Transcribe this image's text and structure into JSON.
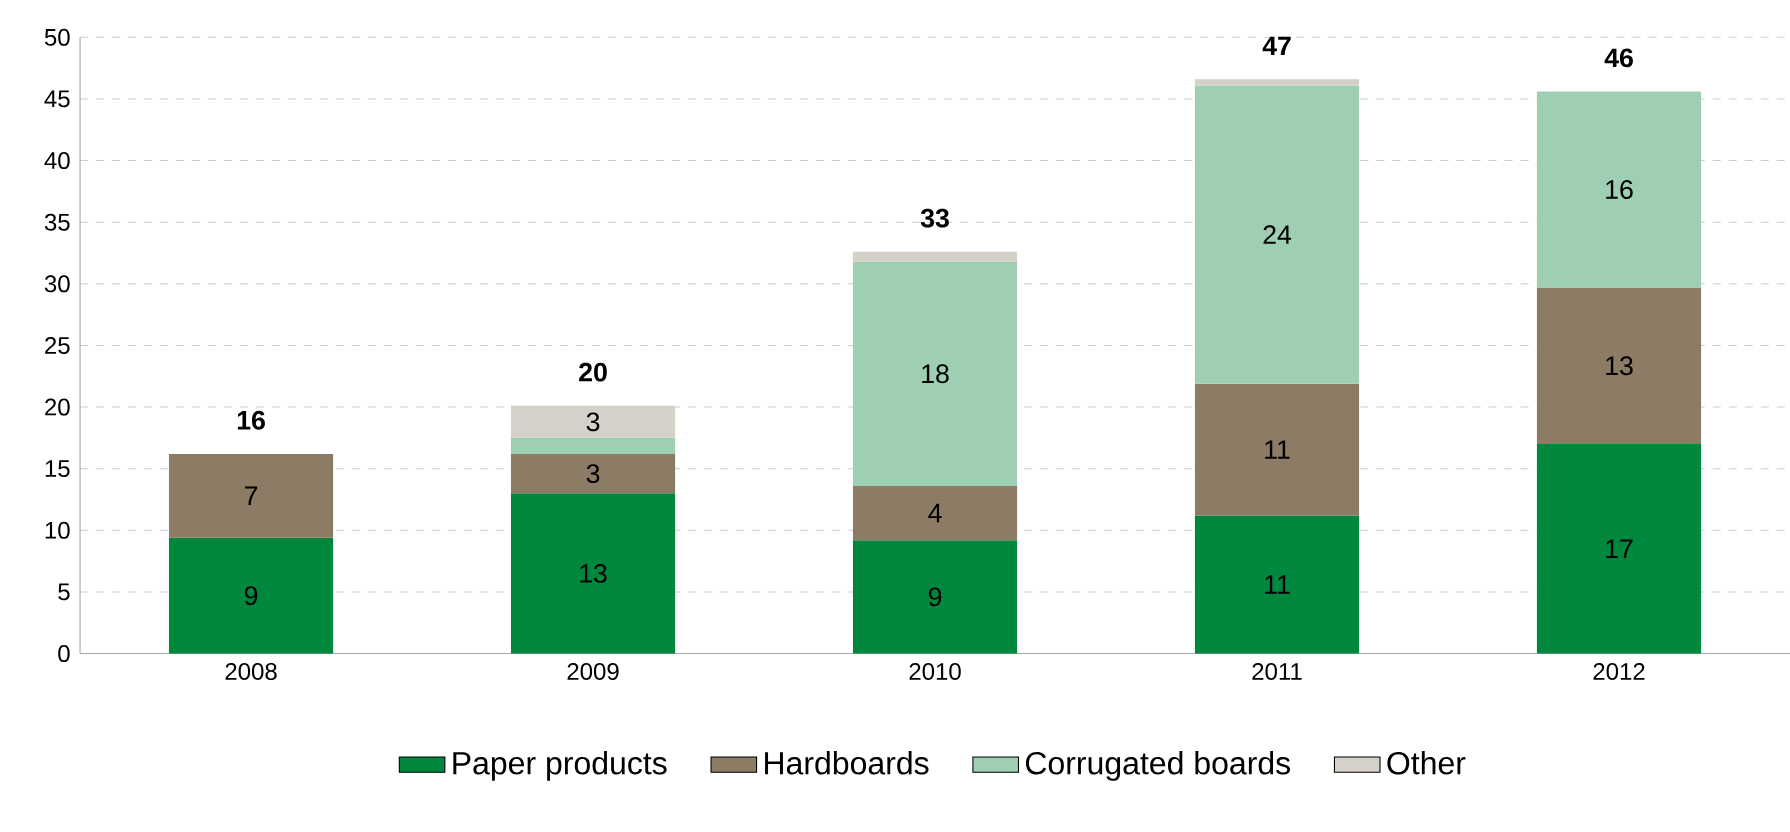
{
  "chart_data": {
    "type": "bar",
    "stacked": true,
    "categories": [
      "2008",
      "2009",
      "2010",
      "2011",
      "2012"
    ],
    "series": [
      {
        "name": "Paper products",
        "color": "#00873e",
        "values": [
          9.4,
          13.0,
          9.2,
          11.2,
          17.0
        ],
        "value_labels": [
          "9",
          "13",
          "9",
          "11",
          "17"
        ]
      },
      {
        "name": "Hardboards",
        "color": "#8c7b65",
        "values": [
          6.8,
          3.2,
          4.4,
          10.7,
          12.7
        ],
        "value_labels": [
          "7",
          "3",
          "4",
          "11",
          "13"
        ]
      },
      {
        "name": "Corrugated boards",
        "color": "#9ecfb3",
        "values": [
          null,
          1.3,
          18.2,
          24.2,
          15.9
        ],
        "value_labels": [
          null,
          null,
          "18",
          "24",
          "16"
        ]
      },
      {
        "name": "Other",
        "color": "#d5d0c8",
        "values": [
          null,
          2.6,
          0.8,
          0.5,
          null
        ],
        "value_labels": [
          null,
          "3",
          null,
          null,
          null
        ]
      }
    ],
    "totals": [
      "16",
      "20",
      "33",
      "47",
      "46"
    ],
    "ylim": [
      0,
      50
    ],
    "yticks": [
      0,
      5,
      10,
      15,
      20,
      25,
      30,
      35,
      40,
      45,
      50
    ],
    "grid": "y",
    "legend": "bottom"
  }
}
